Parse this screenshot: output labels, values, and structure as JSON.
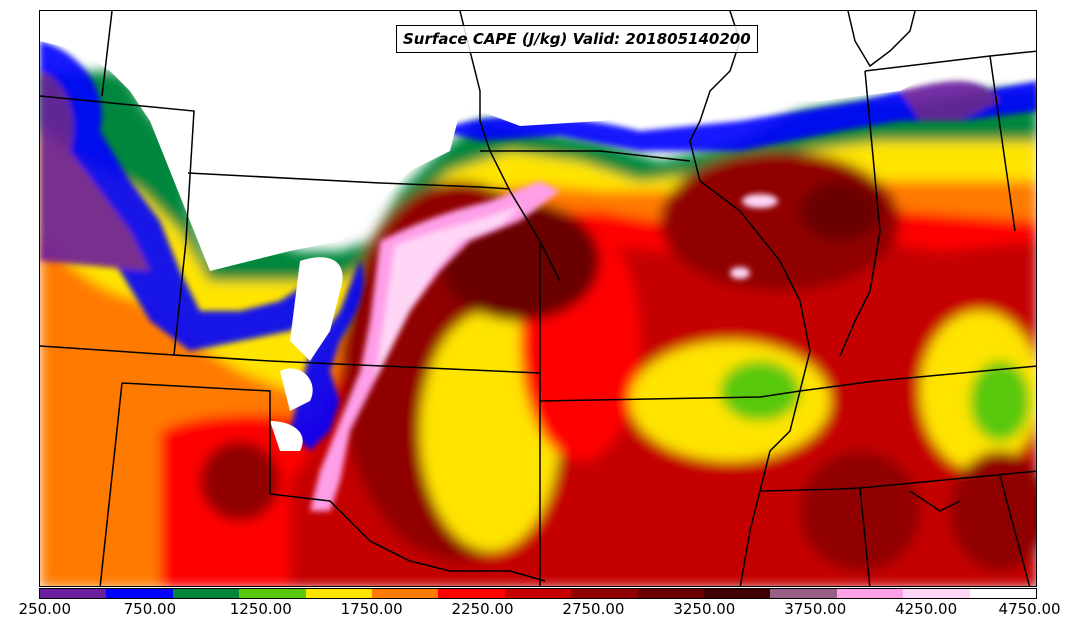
{
  "title": "Surface CAPE (J/kg) Valid: 201805140200",
  "colorbar": {
    "colors": [
      "#6a1f9e",
      "#0000ff",
      "#00873c",
      "#58c80c",
      "#ffe400",
      "#ff7a00",
      "#ff0000",
      "#c40000",
      "#900000",
      "#6a0000",
      "#3f0000",
      "#9a5f86",
      "#ff9fe8",
      "#ffd6f6",
      "#ffffff"
    ],
    "tick_labels": [
      "250.00",
      "750.00",
      "1250.00",
      "1750.00",
      "2250.00",
      "2750.00",
      "3250.00",
      "3750.00",
      "4250.00",
      "4750.00"
    ]
  }
}
